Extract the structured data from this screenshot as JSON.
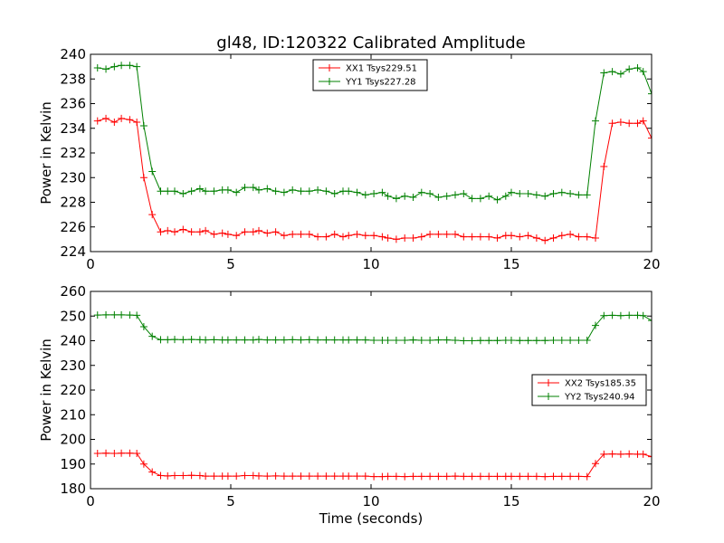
{
  "title": "gl48, ID:120322 Calibrated Amplitude",
  "chart_data": [
    {
      "type": "line",
      "title": "gl48, ID:120322 Calibrated Amplitude",
      "xlabel": "",
      "ylabel": "Power in Kelvin",
      "xlim": [
        0,
        20
      ],
      "ylim": [
        224,
        240
      ],
      "xticks": [
        0,
        5,
        10,
        15,
        20
      ],
      "yticks": [
        224,
        226,
        228,
        230,
        232,
        234,
        236,
        238,
        240
      ],
      "grid": false,
      "legend": "top-center",
      "series": [
        {
          "name": "XX1 Tsys229.51",
          "color": "#ff0000",
          "x": [
            0.25,
            0.55,
            0.85,
            1.1,
            1.4,
            1.65,
            1.9,
            2.2,
            2.5,
            2.75,
            3.0,
            3.3,
            3.6,
            3.9,
            4.1,
            4.4,
            4.7,
            4.9,
            5.2,
            5.5,
            5.8,
            6.0,
            6.3,
            6.6,
            6.9,
            7.2,
            7.5,
            7.8,
            8.1,
            8.4,
            8.7,
            9.0,
            9.2,
            9.5,
            9.8,
            10.1,
            10.4,
            10.6,
            10.9,
            11.2,
            11.5,
            11.8,
            12.1,
            12.4,
            12.7,
            13.0,
            13.3,
            13.6,
            13.9,
            14.2,
            14.5,
            14.8,
            15.0,
            15.3,
            15.6,
            15.9,
            16.2,
            16.5,
            16.8,
            17.1,
            17.4,
            17.7,
            18.0,
            18.3,
            18.6,
            18.9,
            19.2,
            19.5,
            19.7,
            20.0
          ],
          "values": [
            234.6,
            234.8,
            234.5,
            234.8,
            234.7,
            234.5,
            230.0,
            227.0,
            225.6,
            225.7,
            225.6,
            225.8,
            225.6,
            225.6,
            225.7,
            225.4,
            225.5,
            225.4,
            225.3,
            225.6,
            225.6,
            225.7,
            225.5,
            225.6,
            225.3,
            225.4,
            225.4,
            225.4,
            225.2,
            225.2,
            225.4,
            225.2,
            225.3,
            225.4,
            225.3,
            225.3,
            225.2,
            225.1,
            225.0,
            225.1,
            225.1,
            225.2,
            225.4,
            225.4,
            225.4,
            225.4,
            225.2,
            225.2,
            225.2,
            225.2,
            225.1,
            225.3,
            225.3,
            225.2,
            225.3,
            225.1,
            224.9,
            225.1,
            225.3,
            225.4,
            225.2,
            225.2,
            225.1,
            230.9,
            234.4,
            234.5,
            234.4,
            234.4,
            234.6,
            233.2
          ]
        },
        {
          "name": "YY1 Tsys227.28",
          "color": "#008000",
          "x": [
            0.25,
            0.55,
            0.85,
            1.1,
            1.4,
            1.65,
            1.9,
            2.2,
            2.5,
            2.75,
            3.0,
            3.3,
            3.6,
            3.9,
            4.1,
            4.4,
            4.7,
            4.9,
            5.2,
            5.5,
            5.8,
            6.0,
            6.3,
            6.6,
            6.9,
            7.2,
            7.5,
            7.8,
            8.1,
            8.4,
            8.7,
            9.0,
            9.2,
            9.5,
            9.8,
            10.1,
            10.4,
            10.6,
            10.9,
            11.2,
            11.5,
            11.8,
            12.1,
            12.4,
            12.7,
            13.0,
            13.3,
            13.6,
            13.9,
            14.2,
            14.5,
            14.8,
            15.0,
            15.3,
            15.6,
            15.9,
            16.2,
            16.5,
            16.8,
            17.1,
            17.4,
            17.7,
            18.0,
            18.3,
            18.6,
            18.9,
            19.2,
            19.5,
            19.7,
            20.0
          ],
          "values": [
            238.9,
            238.8,
            239.0,
            239.1,
            239.1,
            239.0,
            234.2,
            230.5,
            228.9,
            228.9,
            228.9,
            228.7,
            228.9,
            229.1,
            228.9,
            228.9,
            229.0,
            229.0,
            228.8,
            229.2,
            229.2,
            229.0,
            229.1,
            228.9,
            228.8,
            229.0,
            228.9,
            228.9,
            229.0,
            228.9,
            228.7,
            228.9,
            228.9,
            228.8,
            228.6,
            228.7,
            228.8,
            228.5,
            228.3,
            228.5,
            228.4,
            228.8,
            228.7,
            228.4,
            228.5,
            228.6,
            228.7,
            228.3,
            228.3,
            228.5,
            228.2,
            228.5,
            228.8,
            228.7,
            228.7,
            228.6,
            228.5,
            228.7,
            228.8,
            228.7,
            228.6,
            228.6,
            234.6,
            238.5,
            238.6,
            238.4,
            238.8,
            238.9,
            238.6,
            236.8
          ]
        }
      ]
    },
    {
      "type": "line",
      "title": "",
      "xlabel": "Time (seconds)",
      "ylabel": "Power in Kelvin",
      "xlim": [
        0,
        20
      ],
      "ylim": [
        180,
        260
      ],
      "xticks": [
        0,
        5,
        10,
        15,
        20
      ],
      "yticks": [
        180,
        190,
        200,
        210,
        220,
        230,
        240,
        250,
        260
      ],
      "grid": false,
      "legend": "center-right",
      "series": [
        {
          "name": "XX2 Tsys185.35",
          "color": "#ff0000",
          "x": [
            0.25,
            0.55,
            0.85,
            1.1,
            1.4,
            1.65,
            1.9,
            2.2,
            2.5,
            2.75,
            3.0,
            3.3,
            3.6,
            3.9,
            4.1,
            4.4,
            4.7,
            4.9,
            5.2,
            5.5,
            5.8,
            6.0,
            6.3,
            6.6,
            6.9,
            7.2,
            7.5,
            7.8,
            8.1,
            8.4,
            8.7,
            9.0,
            9.2,
            9.5,
            9.8,
            10.1,
            10.4,
            10.6,
            10.9,
            11.2,
            11.5,
            11.8,
            12.1,
            12.4,
            12.7,
            13.0,
            13.3,
            13.6,
            13.9,
            14.2,
            14.5,
            14.8,
            15.0,
            15.3,
            15.6,
            15.9,
            16.2,
            16.5,
            16.8,
            17.1,
            17.4,
            17.7,
            18.0,
            18.3,
            18.6,
            18.9,
            19.2,
            19.5,
            19.7,
            20.0
          ],
          "values": [
            194.3,
            194.4,
            194.3,
            194.4,
            194.4,
            194.3,
            190.0,
            186.8,
            185.3,
            185.2,
            185.3,
            185.3,
            185.4,
            185.3,
            185.1,
            185.1,
            185.1,
            185.1,
            185.1,
            185.3,
            185.3,
            185.2,
            185.1,
            185.2,
            185.1,
            185.1,
            185.1,
            185.1,
            185.1,
            185.1,
            185.1,
            185.1,
            185.1,
            185.1,
            185.1,
            184.9,
            184.9,
            185.0,
            185.0,
            184.9,
            185.0,
            185.0,
            185.0,
            185.0,
            185.0,
            185.1,
            185.0,
            185.0,
            185.0,
            185.0,
            185.0,
            185.0,
            185.0,
            185.0,
            185.0,
            185.0,
            184.9,
            185.0,
            185.0,
            185.0,
            185.0,
            184.9,
            190.2,
            194.0,
            194.1,
            194.0,
            194.1,
            194.0,
            194.0,
            193.0
          ]
        },
        {
          "name": "YY2 Tsys240.94",
          "color": "#008000",
          "x": [
            0.25,
            0.55,
            0.85,
            1.1,
            1.4,
            1.65,
            1.9,
            2.2,
            2.5,
            2.75,
            3.0,
            3.3,
            3.6,
            3.9,
            4.1,
            4.4,
            4.7,
            4.9,
            5.2,
            5.5,
            5.8,
            6.0,
            6.3,
            6.6,
            6.9,
            7.2,
            7.5,
            7.8,
            8.1,
            8.4,
            8.7,
            9.0,
            9.2,
            9.5,
            9.8,
            10.1,
            10.4,
            10.6,
            10.9,
            11.2,
            11.5,
            11.8,
            12.1,
            12.4,
            12.7,
            13.0,
            13.3,
            13.6,
            13.9,
            14.2,
            14.5,
            14.8,
            15.0,
            15.3,
            15.6,
            15.9,
            16.2,
            16.5,
            16.8,
            17.1,
            17.4,
            17.7,
            18.0,
            18.3,
            18.6,
            18.9,
            19.2,
            19.5,
            19.7,
            20.0
          ],
          "values": [
            250.4,
            250.5,
            250.5,
            250.5,
            250.4,
            250.3,
            245.7,
            241.8,
            240.4,
            240.4,
            240.5,
            240.4,
            240.5,
            240.4,
            240.3,
            240.4,
            240.3,
            240.3,
            240.3,
            240.3,
            240.3,
            240.5,
            240.3,
            240.3,
            240.3,
            240.4,
            240.3,
            240.4,
            240.3,
            240.3,
            240.3,
            240.3,
            240.3,
            240.3,
            240.3,
            240.2,
            240.2,
            240.2,
            240.2,
            240.2,
            240.3,
            240.2,
            240.2,
            240.3,
            240.3,
            240.2,
            240.0,
            240.0,
            240.1,
            240.1,
            240.1,
            240.2,
            240.2,
            240.1,
            240.1,
            240.1,
            240.1,
            240.2,
            240.2,
            240.2,
            240.2,
            240.2,
            246.2,
            250.2,
            250.3,
            250.2,
            250.3,
            250.3,
            250.2,
            248.2
          ]
        }
      ]
    }
  ]
}
